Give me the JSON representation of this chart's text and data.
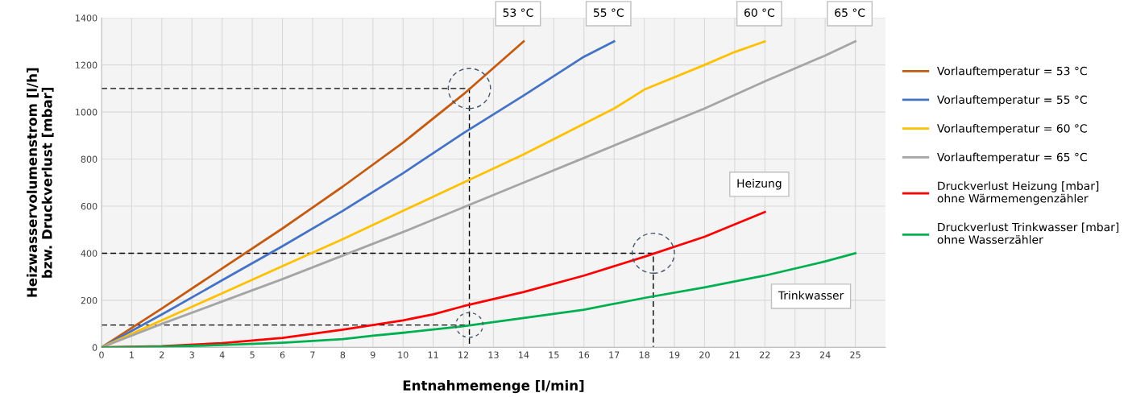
{
  "chart_data": {
    "type": "line",
    "xlabel": "Entnahmemenge [l/min]",
    "ylabel": "Heizwasservolumenstrom [l/h]\nbzw. Druckverlust [mbar]",
    "xlim": [
      0,
      26
    ],
    "xticks": [
      0,
      1,
      2,
      3,
      4,
      5,
      6,
      7,
      8,
      9,
      10,
      11,
      12,
      13,
      14,
      15,
      16,
      17,
      18,
      19,
      20,
      21,
      22,
      23,
      24,
      25
    ],
    "ylim": [
      0,
      1400
    ],
    "yticks": [
      0,
      200,
      400,
      600,
      800,
      1000,
      1200,
      1400
    ],
    "grid": true,
    "legend": "right",
    "line_style": "solid",
    "series": [
      {
        "name": "Vorlauftemperatur = 53 °C",
        "color": "#c55a11",
        "x": [
          0,
          2,
          4,
          6,
          8,
          10,
          12,
          14
        ],
        "values": [
          0,
          165,
          335,
          505,
          683,
          870,
          1075,
          1300
        ]
      },
      {
        "name": "Vorlauftemperatur = 55 °C",
        "color": "#4472c4",
        "x": [
          0,
          2,
          4,
          6,
          8,
          10,
          12,
          14,
          16,
          17
        ],
        "values": [
          0,
          140,
          285,
          430,
          580,
          740,
          910,
          1070,
          1235,
          1300
        ]
      },
      {
        "name": "Vorlauftemperatur = 60 °C",
        "color": "#ffc000",
        "x": [
          0,
          2,
          4,
          6,
          8,
          10,
          12,
          14,
          16,
          17,
          18,
          20,
          21,
          22
        ],
        "values": [
          0,
          115,
          230,
          345,
          460,
          580,
          700,
          820,
          950,
          1015,
          1095,
          1200,
          1255,
          1300
        ]
      },
      {
        "name": "Vorlauftemperatur = 65 °C",
        "color": "#a5a5a5",
        "x": [
          0,
          2,
          4,
          6,
          8,
          10,
          12,
          14,
          16,
          18,
          20,
          22,
          24,
          25
        ],
        "values": [
          0,
          100,
          195,
          290,
          390,
          490,
          595,
          700,
          805,
          910,
          1015,
          1130,
          1240,
          1300
        ]
      },
      {
        "name": "Druckverlust Heizung [mbar]\nohne Wärmemengenzähler",
        "color": "#ff0000",
        "x": [
          0,
          2,
          4,
          6,
          8,
          10,
          11,
          12,
          14,
          16,
          18,
          20,
          22
        ],
        "values": [
          0,
          5,
          18,
          40,
          75,
          115,
          140,
          175,
          235,
          305,
          385,
          470,
          575
        ]
      },
      {
        "name": "Druckverlust Trinkwasser [mbar]\nohne Wasserzähler",
        "color": "#00b050",
        "x": [
          0,
          2,
          4,
          6,
          8,
          9,
          10,
          12,
          14,
          16,
          18,
          20,
          22,
          24,
          25
        ],
        "values": [
          0,
          3,
          10,
          20,
          35,
          50,
          62,
          90,
          125,
          160,
          210,
          255,
          305,
          365,
          400
        ]
      },
      {
        "color": "#000000",
        "line_style": "dashed",
        "x": [
          0,
          12.2,
          12.2
        ],
        "values": [
          1100,
          1100,
          0
        ]
      },
      {
        "color": "#000000",
        "line_style": "dashed",
        "x": [
          0,
          18.3,
          18.3
        ],
        "values": [
          400,
          400,
          0
        ]
      },
      {
        "color": "#000000",
        "line_style": "dashed",
        "x": [
          0,
          12.2
        ],
        "values": [
          95,
          95
        ]
      }
    ],
    "annotations": [
      {
        "text": "53 °C",
        "x": 14,
        "y": 1300
      },
      {
        "text": "55 °C",
        "x": 17,
        "y": 1300
      },
      {
        "text": "60 °C",
        "x": 22,
        "y": 1300
      },
      {
        "text": "65 °C",
        "x": 25,
        "y": 1300
      },
      {
        "text": "Heizung",
        "x": 22,
        "y": 575
      },
      "Trinkwasser"
    ]
  }
}
